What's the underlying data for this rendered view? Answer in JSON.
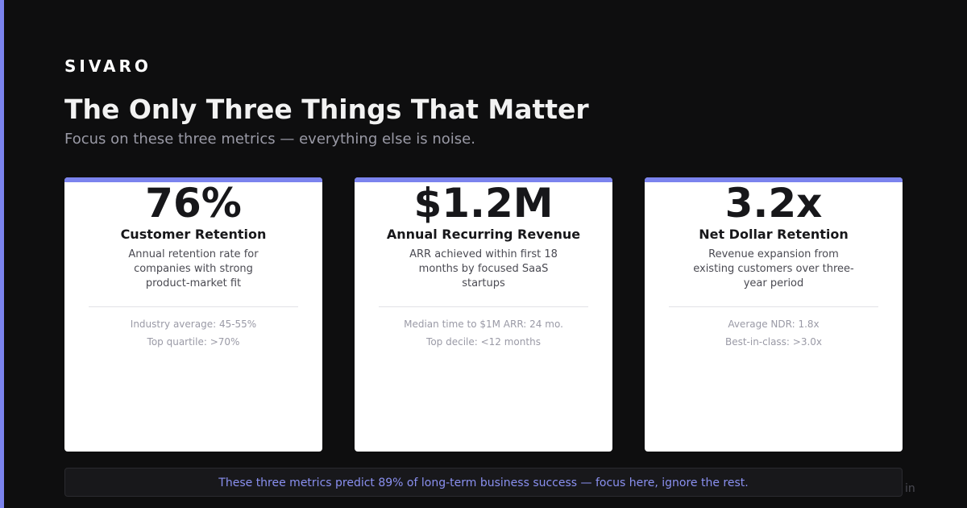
{
  "brand": "SIVARO",
  "title": "The Only Three Things That Matter",
  "subtitle": "Focus on these three metrics — everything else is noise.",
  "cards": [
    {
      "value": "76%",
      "label": "Customer Retention",
      "description": "Annual retention rate for companies with strong product-market fit",
      "stats": [
        "Industry average: 45-55%",
        "Top quartile: >70%"
      ]
    },
    {
      "value": "$1.2M",
      "label": "Annual Recurring Revenue",
      "description": "ARR achieved within first 18 months by focused SaaS startups",
      "stats": [
        "Median time to $1M ARR: 24 mo.",
        "Top decile: <12 months"
      ]
    },
    {
      "value": "3.2x",
      "label": "Net Dollar Retention",
      "description": "Revenue expansion from existing customers over three-year period",
      "stats": [
        "Average NDR: 1.8x",
        "Best-in-class: >3.0x"
      ]
    }
  ],
  "footer": "These three metrics predict 89% of long-term business success — focus here, ignore the rest.",
  "corner_mark": "in",
  "colors": {
    "background": "#0e0e0f",
    "accent": "#7b83ee",
    "card": "#ffffff",
    "footer_text": "#8a90f0"
  }
}
